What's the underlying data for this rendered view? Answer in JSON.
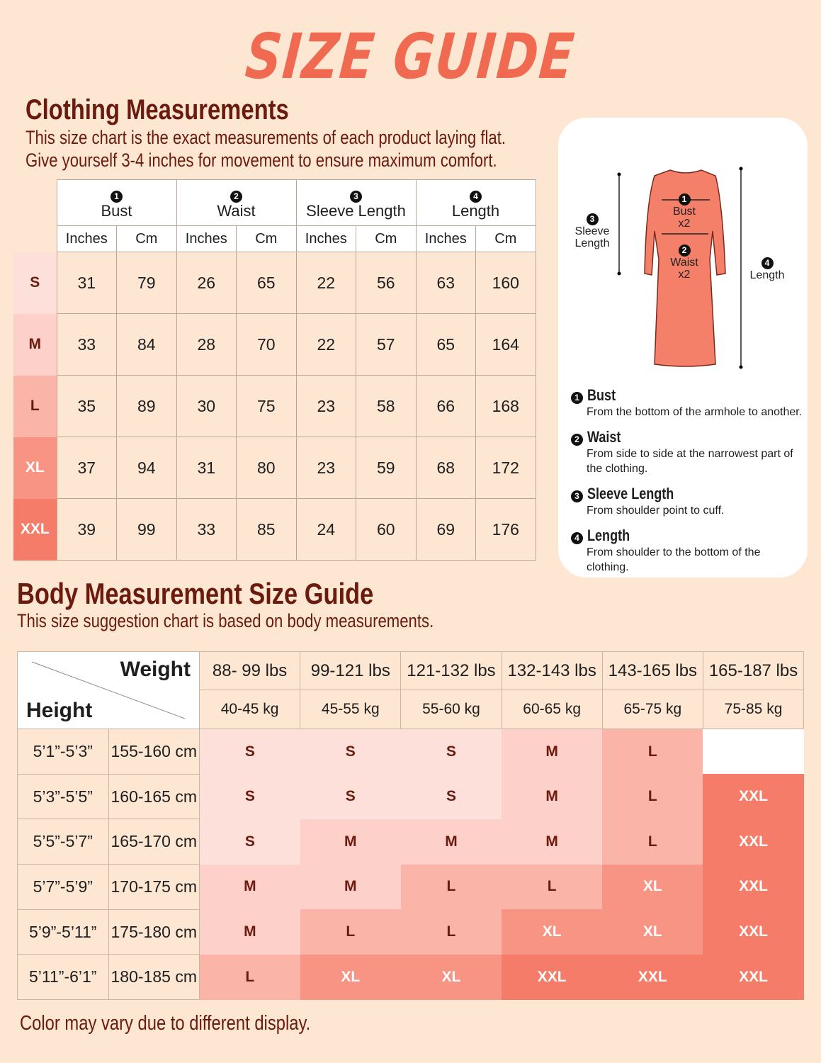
{
  "title": "SIZE GUIDE",
  "clothing": {
    "heading": "Clothing Measurements",
    "desc1": "This size chart is the exact measurements of each product laying flat.",
    "desc2": "Give yourself 3-4 inches for movement to ensure maximum comfort.",
    "columns": [
      {
        "num": "1",
        "label": "Bust"
      },
      {
        "num": "2",
        "label": "Waist"
      },
      {
        "num": "3",
        "label": "Sleeve Length"
      },
      {
        "num": "4",
        "label": "Length"
      }
    ],
    "unit_inches": "Inches",
    "unit_cm": "Cm",
    "rows": [
      {
        "size": "S",
        "values": [
          "31",
          "79",
          "26",
          "65",
          "22",
          "56",
          "63",
          "160"
        ]
      },
      {
        "size": "M",
        "values": [
          "33",
          "84",
          "28",
          "70",
          "22",
          "57",
          "65",
          "164"
        ]
      },
      {
        "size": "L",
        "values": [
          "35",
          "89",
          "30",
          "75",
          "23",
          "58",
          "66",
          "168"
        ]
      },
      {
        "size": "XL",
        "values": [
          "37",
          "94",
          "31",
          "80",
          "23",
          "59",
          "68",
          "172"
        ]
      },
      {
        "size": "XXL",
        "values": [
          "39",
          "99",
          "33",
          "85",
          "24",
          "60",
          "69",
          "176"
        ]
      }
    ]
  },
  "diagram": {
    "bust": "Bust",
    "bust_x": "x2",
    "waist": "Waist",
    "waist_x": "x2",
    "sleeve1": "Sleeve",
    "sleeve2": "Length",
    "length": "Length",
    "definitions": [
      {
        "num": "1",
        "title": "Bust",
        "text": "From the bottom of the armhole to another."
      },
      {
        "num": "2",
        "title": "Waist",
        "text": "From side to side at the narrowest part of the clothing."
      },
      {
        "num": "3",
        "title": "Sleeve Length",
        "text": "From shoulder point to cuff."
      },
      {
        "num": "4",
        "title": "Length",
        "text": "From shoulder to the bottom of the clothing."
      }
    ]
  },
  "body": {
    "heading": "Body Measurement Size Guide",
    "desc": "This size suggestion chart is based on body measurements.",
    "weight_label": "Weight",
    "height_label": "Height",
    "weights_lbs": [
      "88- 99 lbs",
      "99-121 lbs",
      "121-132 lbs",
      "132-143 lbs",
      "143-165 lbs",
      "165-187 lbs"
    ],
    "weights_kg": [
      "40-45 kg",
      "45-55 kg",
      "55-60 kg",
      "60-65 kg",
      "65-75 kg",
      "75-85 kg"
    ],
    "rows": [
      {
        "ft": "5’1”-5’3”",
        "cm": "155-160 cm",
        "sizes": [
          "S",
          "S",
          "S",
          "M",
          "L",
          ""
        ]
      },
      {
        "ft": "5’3”-5’5”",
        "cm": "160-165 cm",
        "sizes": [
          "S",
          "S",
          "S",
          "M",
          "L",
          "XXL"
        ]
      },
      {
        "ft": "5’5”-5’7”",
        "cm": "165-170 cm",
        "sizes": [
          "S",
          "M",
          "M",
          "M",
          "L",
          "XXL"
        ]
      },
      {
        "ft": "5’7”-5’9”",
        "cm": "170-175 cm",
        "sizes": [
          "M",
          "M",
          "L",
          "L",
          "XL",
          "XXL"
        ]
      },
      {
        "ft": "5’9”-5’11”",
        "cm": "175-180 cm",
        "sizes": [
          "M",
          "L",
          "L",
          "XL",
          "XL",
          "XXL"
        ]
      },
      {
        "ft": "5’11”-6’1”",
        "cm": "180-185 cm",
        "sizes": [
          "L",
          "XL",
          "XL",
          "XXL",
          "XXL",
          "XXL"
        ]
      }
    ]
  },
  "size_colors": {
    "S": "#fde0da",
    "M": "#fdd0ca",
    "L": "#fbb4a8",
    "XL": "#f79484",
    "XXL": "#f57c68",
    "": "#ffffff"
  },
  "footer": "Color may vary due to different display."
}
